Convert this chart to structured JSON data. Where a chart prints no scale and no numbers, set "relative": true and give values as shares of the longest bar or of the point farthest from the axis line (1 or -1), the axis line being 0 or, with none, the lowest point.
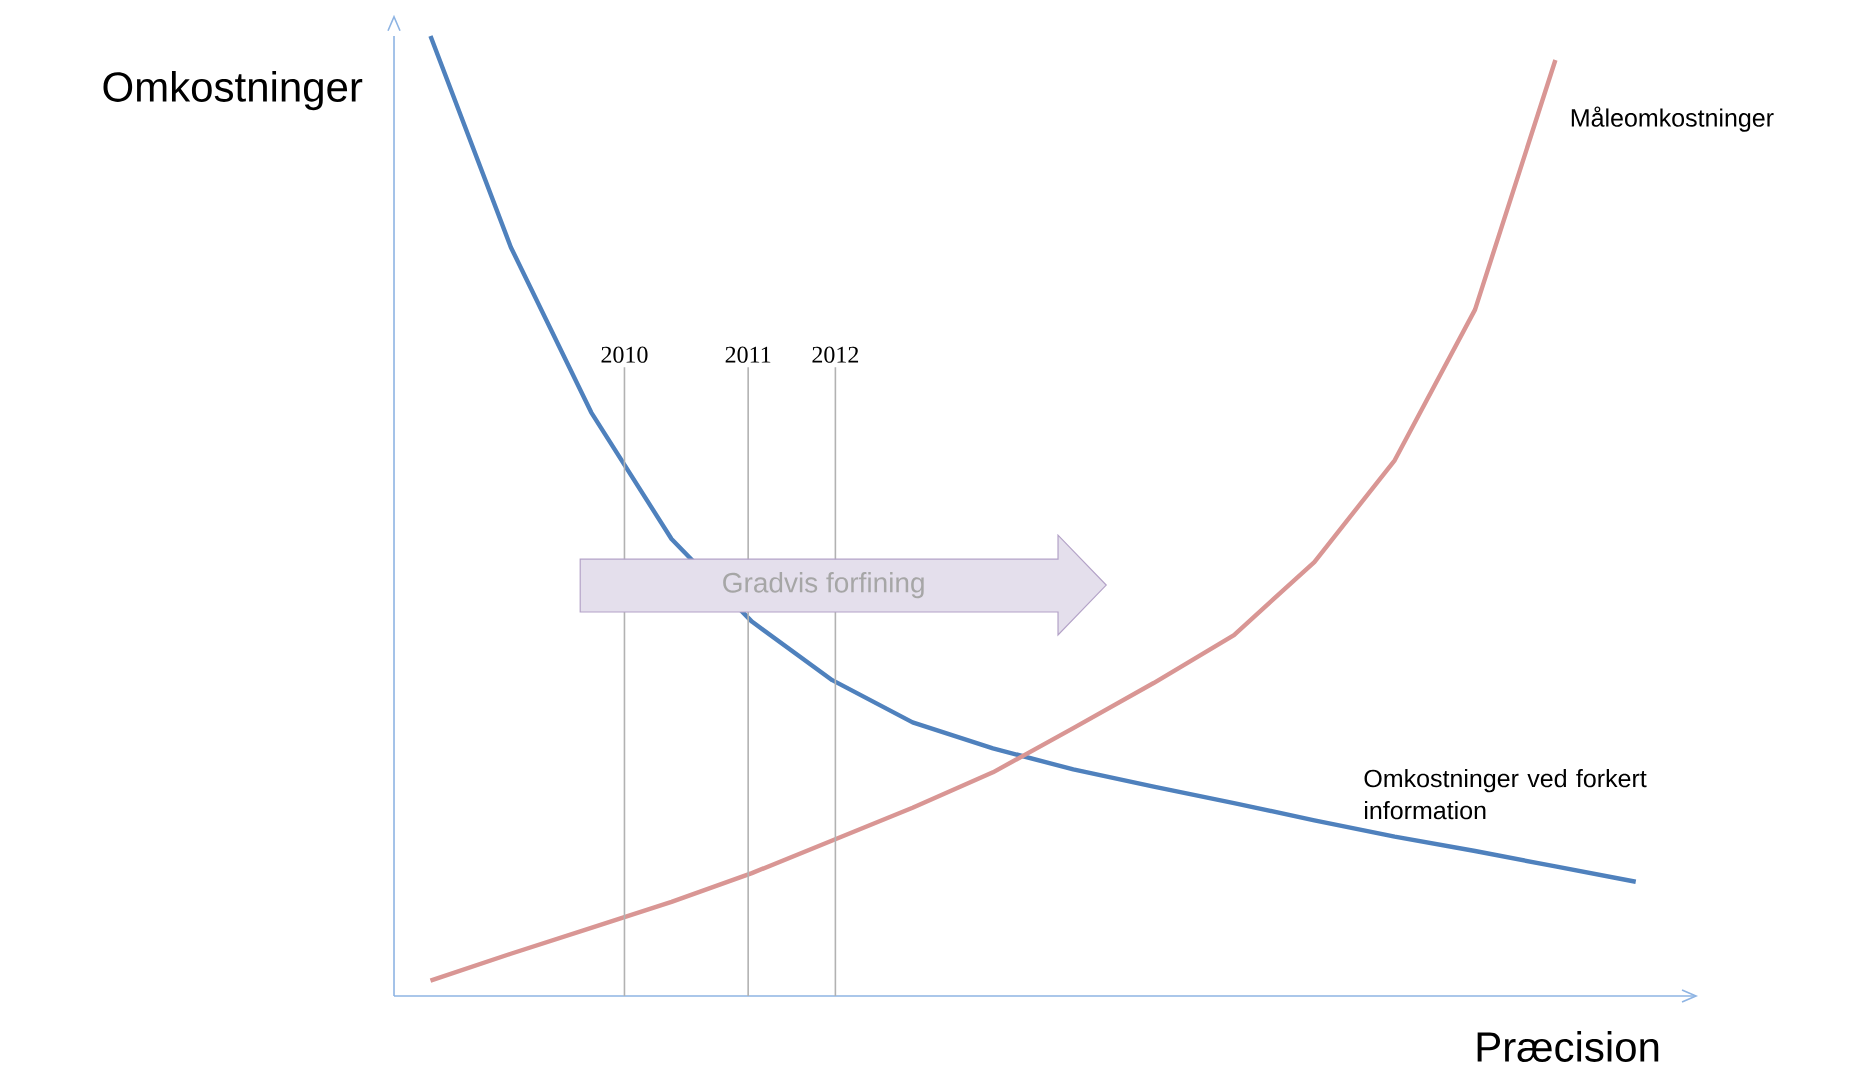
{
  "chart_data": {
    "type": "line",
    "relative": true,
    "xlabel": "Præcision",
    "ylabel": "Omkostninger",
    "categories": [
      null,
      null,
      null,
      null,
      null,
      null,
      null,
      null,
      null,
      null,
      null,
      null,
      null,
      null,
      null,
      null
    ],
    "series": [
      {
        "name": "Omkostninger ved forkert information",
        "color": "#4f81bd",
        "values": [
          1.0,
          0.78,
          0.608,
          0.476,
          0.39,
          0.329,
          0.285,
          0.258,
          0.236,
          0.218,
          0.201,
          0.183,
          0.166,
          0.151,
          0.135,
          0.119
        ]
      },
      {
        "name": "Måleomkostninger",
        "color": "#d99694",
        "values": [
          0.016,
          0.044,
          0.071,
          0.098,
          0.128,
          0.162,
          0.196,
          0.233,
          0.279,
          0.326,
          0.376,
          0.452,
          0.558,
          0.715,
          0.975,
          null
        ]
      }
    ],
    "annotations": [
      "Gradvis forfining",
      "2010",
      "2011",
      "2012"
    ]
  }
}
